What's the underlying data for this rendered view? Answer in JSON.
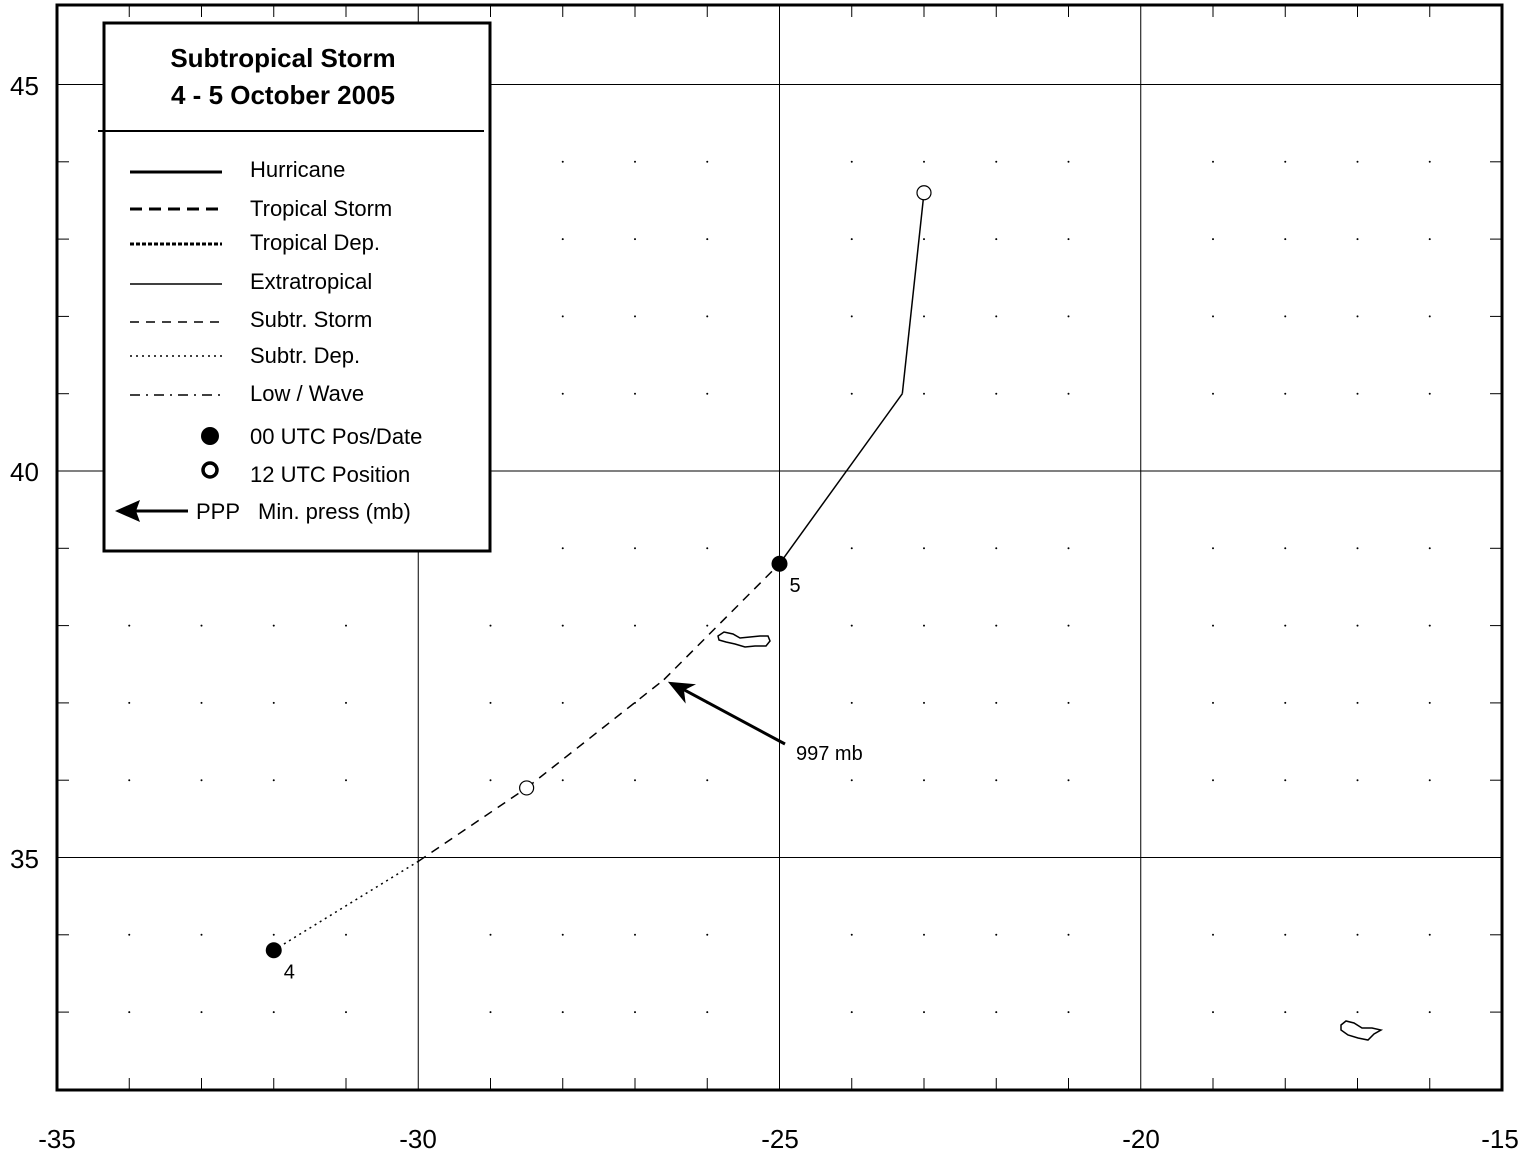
{
  "title_line1": "Subtropical Storm",
  "title_line2": "4 - 5 October 2005",
  "legend": {
    "hurricane": "Hurricane",
    "tropical_storm": "Tropical Storm",
    "tropical_dep": "Tropical Dep.",
    "extratropical": "Extratropical",
    "subtr_storm": "Subtr. Storm",
    "subtr_dep": "Subtr. Dep.",
    "low_wave": "Low / Wave",
    "pos_00": "00 UTC Pos/Date",
    "pos_12": "12 UTC Position",
    "ppp": "PPP",
    "min_press": "Min. press (mb)"
  },
  "chart_data": {
    "type": "scatter",
    "xlim": [
      -35,
      -15
    ],
    "ylim": [
      32,
      46
    ],
    "x_ticks": [
      "-35",
      "-30",
      "-25",
      "-20",
      "-15"
    ],
    "y_ticks": [
      "35",
      "40",
      "45"
    ],
    "grid": true,
    "legend_position": "top-left",
    "track": [
      {
        "lon": -32.0,
        "lat": 33.8,
        "stage": "low_wave"
      },
      {
        "lon": -30.0,
        "lat": 34.95,
        "stage": "subtr_dep"
      },
      {
        "lon": -28.5,
        "lat": 35.9,
        "stage": "subtr_storm"
      },
      {
        "lon": -26.6,
        "lat": 37.3,
        "stage": "subtr_storm"
      },
      {
        "lon": -25.0,
        "lat": 38.8,
        "stage": "subtr_storm"
      },
      {
        "lon": -23.3,
        "lat": 41.0,
        "stage": "extratropical"
      },
      {
        "lon": -23.0,
        "lat": 43.6,
        "stage": "extratropical"
      }
    ],
    "positions": [
      {
        "lon": -32.0,
        "lat": 33.8,
        "kind": "00 UTC",
        "label": "4"
      },
      {
        "lon": -28.5,
        "lat": 35.9,
        "kind": "12 UTC",
        "label": ""
      },
      {
        "lon": -25.0,
        "lat": 38.8,
        "kind": "00 UTC",
        "label": "5"
      },
      {
        "lon": -23.0,
        "lat": 43.6,
        "kind": "12 UTC",
        "label": ""
      }
    ],
    "min_pressure": {
      "lon": -26.6,
      "lat": 37.3,
      "label": "997 mb"
    }
  }
}
